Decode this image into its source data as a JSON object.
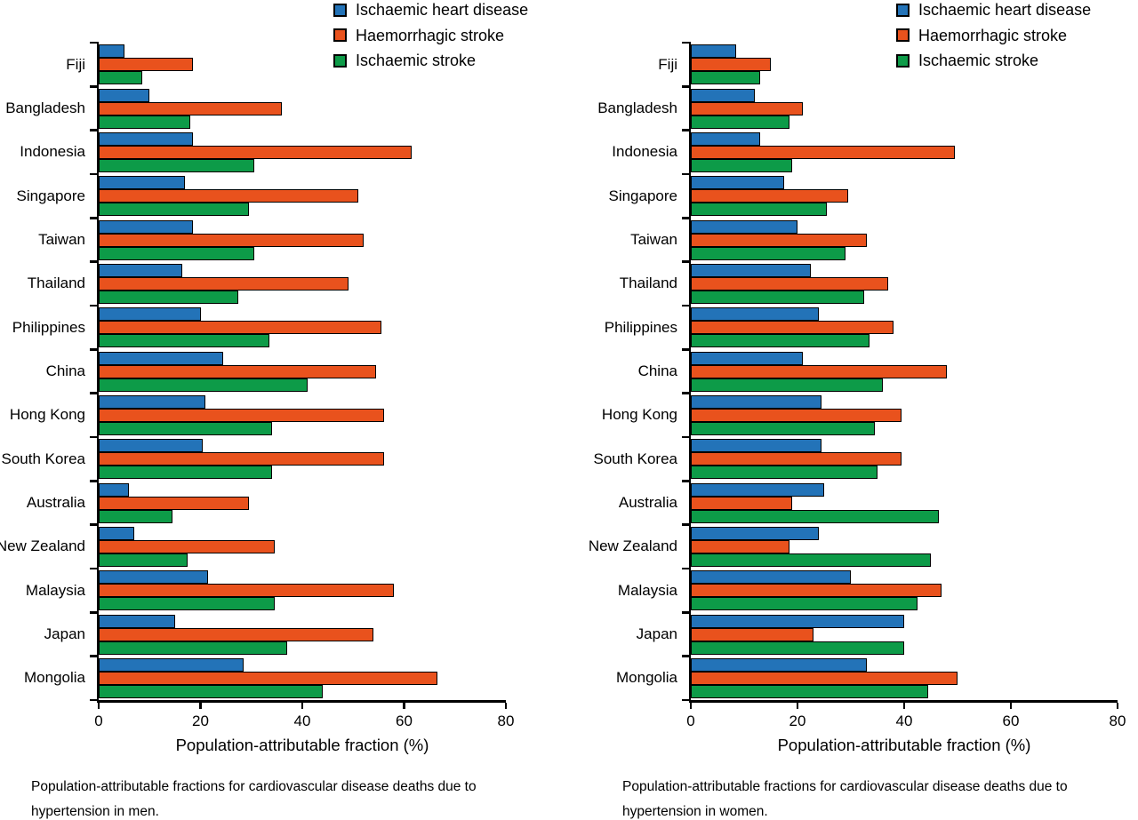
{
  "figure_caption_left": "Population-attributable fractions for cardiovascular disease deaths due to hypertension in men.",
  "figure_caption_right": "Population-attributable fractions for cardiovascular disease deaths due to hypertension in women.",
  "chart_data": [
    {
      "type": "bar",
      "orientation": "horizontal",
      "caption": "Population-attributable fractions for cardiovascular disease deaths due to hypertension in men.",
      "xlabel": "Population-attributable fraction (%)",
      "xlim": [
        0,
        80
      ],
      "xticks": [
        0,
        20,
        40,
        60,
        80
      ],
      "grid": false,
      "legend_position": "top",
      "categories": [
        "Fiji",
        "Bangladesh",
        "Indonesia",
        "Singapore",
        "Taiwan",
        "Thailand",
        "Philippines",
        "China",
        "Hong Kong",
        "South Korea",
        "Australia",
        "New Zealand",
        "Malaysia",
        "Japan",
        "Mongolia"
      ],
      "series": [
        {
          "name": "Ischaemic heart disease",
          "color": "#2373b8",
          "values": [
            5,
            10,
            18.5,
            17,
            18.5,
            16.5,
            20,
            24.5,
            21,
            20.5,
            6,
            7,
            21.5,
            15,
            28.5
          ]
        },
        {
          "name": "Haemorrhagic stroke",
          "color": "#e9521d",
          "values": [
            18.5,
            36,
            61.5,
            51,
            52,
            49,
            55.5,
            54.5,
            56,
            56,
            29.5,
            34.5,
            58,
            54,
            66.5
          ]
        },
        {
          "name": "Ischaemic stroke",
          "color": "#0d9b48",
          "values": [
            8.5,
            18,
            30.5,
            29.5,
            30.5,
            27.5,
            33.5,
            41,
            34,
            34,
            14.5,
            17.5,
            34.5,
            37,
            44
          ]
        }
      ]
    },
    {
      "type": "bar",
      "orientation": "horizontal",
      "caption": "Population-attributable fractions for cardiovascular disease deaths due to hypertension in women.",
      "xlabel": "Population-attributable fraction (%)",
      "xlim": [
        0,
        80
      ],
      "xticks": [
        0,
        20,
        40,
        60,
        80
      ],
      "grid": false,
      "legend_position": "top",
      "categories": [
        "Fiji",
        "Bangladesh",
        "Indonesia",
        "Singapore",
        "Taiwan",
        "Thailand",
        "Philippines",
        "China",
        "Hong Kong",
        "South Korea",
        "Australia",
        "New Zealand",
        "Malaysia",
        "Japan",
        "Mongolia"
      ],
      "series": [
        {
          "name": "Ischaemic heart disease",
          "color": "#2373b8",
          "values": [
            8.5,
            12,
            13,
            17.5,
            20,
            22.5,
            24,
            21,
            24.5,
            24.5,
            25,
            24,
            30,
            40,
            33
          ]
        },
        {
          "name": "Haemorrhagic stroke",
          "color": "#e9521d",
          "values": [
            15,
            21,
            49.5,
            29.5,
            33,
            37,
            38,
            48,
            39.5,
            39.5,
            19,
            18.5,
            47,
            23,
            50
          ]
        },
        {
          "name": "Ischaemic stroke",
          "color": "#0d9b48",
          "values": [
            13,
            18.5,
            19,
            25.5,
            29,
            32.5,
            33.5,
            36,
            34.5,
            35,
            46.5,
            45,
            42.5,
            40,
            44.5
          ]
        }
      ]
    }
  ]
}
